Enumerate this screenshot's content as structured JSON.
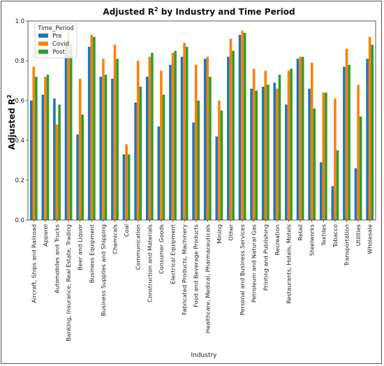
{
  "chart_data": {
    "type": "bar",
    "title": "Adjusted R",
    "title_sup": "2",
    "title_rest": " by Industry and Time Period",
    "ylabel": "Adjusted R",
    "ylabel_sup": "2",
    "xlabel": "Industry",
    "ylim": [
      0,
      1.0
    ],
    "yticks": [
      "0.0",
      "0.2",
      "0.4",
      "0.6",
      "0.8",
      "1.0"
    ],
    "legend_title": "Time_Period",
    "legend_position": "top-left",
    "categories": [
      "Aircraft, Ships and Railroad",
      "Apparel",
      "Automobiles and Trucks",
      "Banking, Insurance, Real Estate, Trading",
      "Beer and Liquor",
      "Business Equipment",
      "Business Supplies and Shipping",
      "Chemicals",
      "Coal",
      "Communication",
      "Construction and Materials",
      "Consumer Goods",
      "Electrical Equipment",
      "Fabricated Products, Machinery",
      "Food and Beverage Products",
      "Healthcare, Medical, Pharmaceuticals",
      "Mining",
      "Other",
      "Personal and Business Services",
      "Petroleum and Natural Gas",
      "Printing and Publishing",
      "Recreation",
      "Restaurants, Hotels, Motels",
      "Retail",
      "Steelworks",
      "Textiles",
      "Tobacco",
      "Transportation",
      "Utilities",
      "Wholesale"
    ],
    "series": [
      {
        "name": "Pre",
        "color": "#1f77b4",
        "values": [
          0.6,
          0.63,
          0.61,
          0.89,
          0.43,
          0.87,
          0.72,
          0.71,
          0.33,
          0.59,
          0.72,
          0.47,
          0.78,
          0.82,
          0.49,
          0.81,
          0.42,
          0.82,
          0.93,
          0.66,
          0.67,
          0.69,
          0.58,
          0.81,
          0.66,
          0.29,
          0.17,
          0.77,
          0.26,
          0.81
        ]
      },
      {
        "name": "Covid",
        "color": "#ff7f0e",
        "values": [
          0.77,
          0.72,
          0.48,
          0.95,
          0.71,
          0.93,
          0.81,
          0.88,
          0.38,
          0.8,
          0.82,
          0.75,
          0.84,
          0.89,
          0.78,
          0.82,
          0.6,
          0.91,
          0.95,
          0.76,
          0.75,
          0.66,
          0.75,
          0.82,
          0.79,
          0.64,
          0.61,
          0.86,
          0.68,
          0.92
        ]
      },
      {
        "name": "Post",
        "color": "#2ca02c",
        "values": [
          0.72,
          0.73,
          0.58,
          0.89,
          0.53,
          0.92,
          0.73,
          0.81,
          0.33,
          0.67,
          0.84,
          0.63,
          0.85,
          0.87,
          0.6,
          0.72,
          0.55,
          0.85,
          0.94,
          0.65,
          0.68,
          0.73,
          0.76,
          0.82,
          0.56,
          0.64,
          0.35,
          0.78,
          0.52,
          0.88
        ]
      }
    ]
  }
}
